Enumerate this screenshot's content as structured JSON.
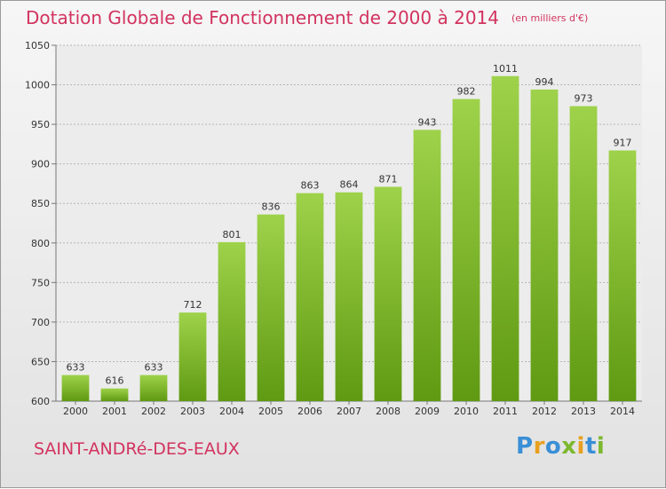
{
  "title": "Dotation Globale de Fonctionnement de 2000 à 2014",
  "unit": "(en milliers d'€)",
  "commune": "SAINT-ANDRé-DES-EAUX",
  "logo": {
    "letters": [
      "P",
      "r",
      "o",
      "x",
      "i",
      "t",
      "i"
    ],
    "colors": [
      "#3a8fd6",
      "#e8a020",
      "#3a8fd6",
      "#7cb82f",
      "#e8a020",
      "#3a8fd6",
      "#7cb82f"
    ]
  },
  "colors": {
    "title": "#d2335f",
    "bar_light": "#9ed24a",
    "bar_dark": "#5f9a12",
    "grid": "#b5b5b5",
    "axis_text": "#333333"
  },
  "chart_data": {
    "type": "bar",
    "categories": [
      "2000",
      "2001",
      "2002",
      "2003",
      "2004",
      "2005",
      "2006",
      "2007",
      "2008",
      "2009",
      "2010",
      "2011",
      "2012",
      "2013",
      "2014"
    ],
    "values": [
      633,
      616,
      633,
      712,
      801,
      836,
      863,
      864,
      871,
      943,
      982,
      1011,
      994,
      973,
      917
    ],
    "ylim": [
      600,
      1050
    ],
    "yticks": [
      600,
      650,
      700,
      750,
      800,
      850,
      900,
      950,
      1000,
      1050
    ],
    "grid": true
  }
}
